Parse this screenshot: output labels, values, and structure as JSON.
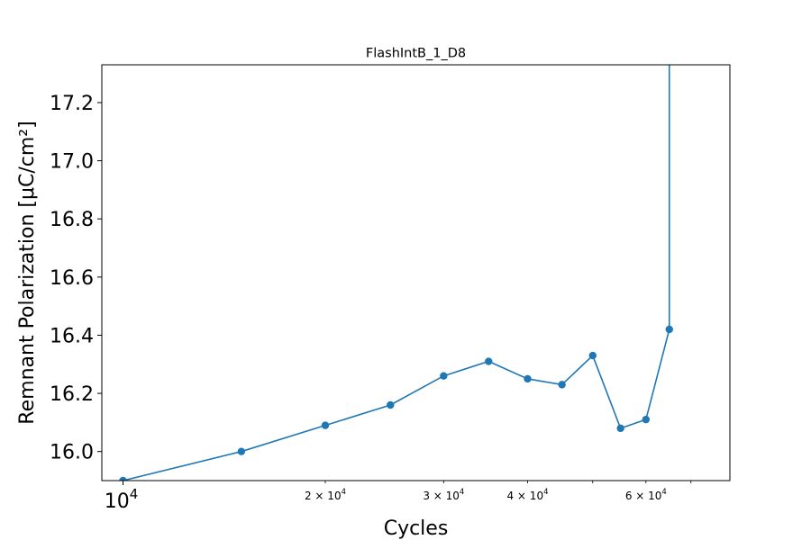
{
  "chart_data": {
    "type": "line",
    "title": "FlashIntB_1_D8",
    "xlabel": "Cycles",
    "ylabel": "Remnant Polarization [μC/cm²]",
    "xscale": "log",
    "xlim": [
      9300,
      80000
    ],
    "ylim": [
      15.9,
      17.33
    ],
    "grid": false,
    "color": "#1f77b4",
    "x_major_ticks": [
      {
        "value": 10000,
        "base": "10",
        "exp": "4"
      }
    ],
    "x_minor_ticks": [
      {
        "value": 20000,
        "coef": "2 × 10",
        "exp": "4"
      },
      {
        "value": 30000,
        "coef": "3 × 10",
        "exp": "4"
      },
      {
        "value": 40000,
        "coef": "4 × 10",
        "exp": "4"
      },
      {
        "value": 60000,
        "coef": "6 × 10",
        "exp": "4"
      }
    ],
    "x_unlabeled_minor_ticks": [
      50000,
      70000
    ],
    "y_ticks": [
      {
        "value": 16.0,
        "label": "16.0"
      },
      {
        "value": 16.2,
        "label": "16.2"
      },
      {
        "value": 16.4,
        "label": "16.4"
      },
      {
        "value": 16.6,
        "label": "16.6"
      },
      {
        "value": 16.8,
        "label": "16.8"
      },
      {
        "value": 17.0,
        "label": "17.0"
      },
      {
        "value": 17.2,
        "label": "17.2"
      }
    ],
    "series": [
      {
        "x": [
          10000,
          15000,
          20000,
          25000,
          30000,
          35000,
          40000,
          45000,
          50000,
          55000,
          60000,
          65000
        ],
        "y": [
          15.9,
          16.0,
          16.09,
          16.16,
          16.26,
          16.31,
          16.25,
          16.23,
          16.33,
          16.08,
          16.11,
          16.42
        ]
      }
    ],
    "offscale_continuation": {
      "x": 65000,
      "note": "line continues upward past top of y-axis"
    }
  }
}
